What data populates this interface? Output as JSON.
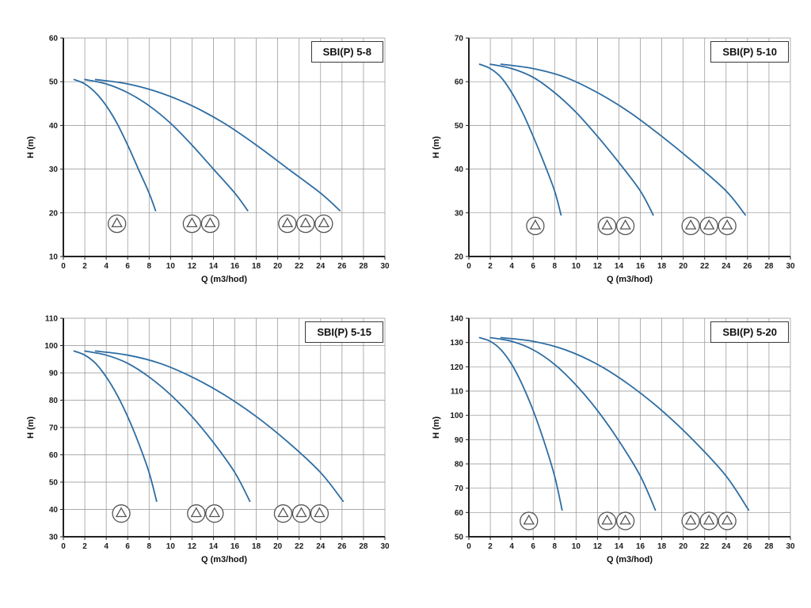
{
  "page": {
    "background": "#ffffff",
    "grid_color": "#8f8f8f",
    "axis_color": "#222222",
    "pump_icon_color": "#555555"
  },
  "chart_data": [
    {
      "type": "line",
      "title": "SBI(P) 5-8",
      "xlabel": "Q (m3/hod)",
      "ylabel": "H (m)",
      "xlim": [
        0,
        30
      ],
      "ylim": [
        10,
        60
      ],
      "xticks": [
        0,
        2,
        4,
        6,
        8,
        10,
        12,
        14,
        16,
        18,
        20,
        22,
        24,
        26,
        28,
        30
      ],
      "yticks": [
        10,
        20,
        30,
        40,
        50,
        60
      ],
      "grid": true,
      "legend": false,
      "curve_color": "#2d6da3",
      "series": [
        {
          "name": "1-pump",
          "points": [
            [
              1,
              50.5
            ],
            [
              2,
              49.5
            ],
            [
              3,
              47.5
            ],
            [
              4,
              44.5
            ],
            [
              5,
              40.5
            ],
            [
              6,
              35.5
            ],
            [
              7,
              30
            ],
            [
              8,
              24.5
            ],
            [
              8.6,
              20.5
            ]
          ]
        },
        {
          "name": "2-pumps",
          "points": [
            [
              2,
              50.5
            ],
            [
              4,
              49.5
            ],
            [
              6,
              47.5
            ],
            [
              8,
              44.5
            ],
            [
              10,
              40.5
            ],
            [
              12,
              35.5
            ],
            [
              14,
              30
            ],
            [
              16,
              24.5
            ],
            [
              17.2,
              20.5
            ]
          ]
        },
        {
          "name": "3-pumps",
          "points": [
            [
              3,
              50.5
            ],
            [
              6,
              49.5
            ],
            [
              9,
              47.5
            ],
            [
              12,
              44.5
            ],
            [
              15,
              40.5
            ],
            [
              18,
              35.5
            ],
            [
              21,
              30
            ],
            [
              24,
              24.5
            ],
            [
              25.8,
              20.5
            ]
          ]
        }
      ],
      "pump_icons": {
        "y": 17.5,
        "groups": [
          [
            5.0
          ],
          [
            12.0,
            13.7
          ],
          [
            20.9,
            22.6,
            24.3
          ]
        ]
      }
    },
    {
      "type": "line",
      "title": "SBI(P) 5-10",
      "xlabel": "Q (m3/hod)",
      "ylabel": "H (m)",
      "xlim": [
        0,
        30
      ],
      "ylim": [
        20,
        70
      ],
      "xticks": [
        0,
        2,
        4,
        6,
        8,
        10,
        12,
        14,
        16,
        18,
        20,
        22,
        24,
        26,
        28,
        30
      ],
      "yticks": [
        20,
        30,
        40,
        50,
        60,
        70
      ],
      "grid": true,
      "legend": false,
      "curve_color": "#2d6da3",
      "series": [
        {
          "name": "1-pump",
          "points": [
            [
              1,
              64
            ],
            [
              2,
              63
            ],
            [
              3,
              61
            ],
            [
              4,
              57.5
            ],
            [
              5,
              53
            ],
            [
              6,
              47.5
            ],
            [
              7,
              41.5
            ],
            [
              8,
              35
            ],
            [
              8.6,
              29.5
            ]
          ]
        },
        {
          "name": "2-pumps",
          "points": [
            [
              2,
              64
            ],
            [
              4,
              63
            ],
            [
              6,
              61
            ],
            [
              8,
              57.5
            ],
            [
              10,
              53
            ],
            [
              12,
              47.5
            ],
            [
              14,
              41.5
            ],
            [
              16,
              35
            ],
            [
              17.2,
              29.5
            ]
          ]
        },
        {
          "name": "3-pumps",
          "points": [
            [
              3,
              64
            ],
            [
              6,
              63
            ],
            [
              9,
              61
            ],
            [
              12,
              57.5
            ],
            [
              15,
              53
            ],
            [
              18,
              47.5
            ],
            [
              21,
              41.5
            ],
            [
              24,
              35
            ],
            [
              25.8,
              29.5
            ]
          ]
        }
      ],
      "pump_icons": {
        "y": 27,
        "groups": [
          [
            6.2
          ],
          [
            12.9,
            14.6
          ],
          [
            20.7,
            22.4,
            24.1
          ]
        ]
      }
    },
    {
      "type": "line",
      "title": "SBI(P) 5-15",
      "xlabel": "Q (m3/hod)",
      "ylabel": "H (m)",
      "xlim": [
        0,
        30
      ],
      "ylim": [
        30,
        110
      ],
      "xticks": [
        0,
        2,
        4,
        6,
        8,
        10,
        12,
        14,
        16,
        18,
        20,
        22,
        24,
        26,
        28,
        30
      ],
      "yticks": [
        30,
        40,
        50,
        60,
        70,
        80,
        90,
        100,
        110
      ],
      "grid": true,
      "legend": false,
      "curve_color": "#2d6da3",
      "series": [
        {
          "name": "1-pump",
          "points": [
            [
              1,
              98
            ],
            [
              2,
              96.5
            ],
            [
              3,
              93.5
            ],
            [
              4,
              88.5
            ],
            [
              5,
              82
            ],
            [
              6,
              74
            ],
            [
              7,
              64.5
            ],
            [
              8,
              53.5
            ],
            [
              8.7,
              43
            ]
          ]
        },
        {
          "name": "2-pumps",
          "points": [
            [
              2,
              98
            ],
            [
              4,
              96.5
            ],
            [
              6,
              93.5
            ],
            [
              8,
              88.5
            ],
            [
              10,
              82
            ],
            [
              12,
              74
            ],
            [
              14,
              64.5
            ],
            [
              16,
              53.5
            ],
            [
              17.4,
              43
            ]
          ]
        },
        {
          "name": "3-pumps",
          "points": [
            [
              3,
              98
            ],
            [
              6,
              96.5
            ],
            [
              9,
              93.5
            ],
            [
              12,
              88.5
            ],
            [
              15,
              82
            ],
            [
              18,
              74
            ],
            [
              21,
              64.5
            ],
            [
              24,
              53.5
            ],
            [
              26.1,
              43
            ]
          ]
        }
      ],
      "pump_icons": {
        "y": 38.5,
        "groups": [
          [
            5.4
          ],
          [
            12.4,
            14.1
          ],
          [
            20.5,
            22.2,
            23.9
          ]
        ]
      }
    },
    {
      "type": "line",
      "title": "SBI(P) 5-20",
      "xlabel": "Q (m3/hod)",
      "ylabel": "H (m)",
      "xlim": [
        0,
        30
      ],
      "ylim": [
        50,
        140
      ],
      "xticks": [
        0,
        2,
        4,
        6,
        8,
        10,
        12,
        14,
        16,
        18,
        20,
        22,
        24,
        26,
        28,
        30
      ],
      "yticks": [
        50,
        60,
        70,
        80,
        90,
        100,
        110,
        120,
        130,
        140
      ],
      "grid": true,
      "legend": false,
      "curve_color": "#2d6da3",
      "series": [
        {
          "name": "1-pump",
          "points": [
            [
              1,
              132
            ],
            [
              2,
              130.5
            ],
            [
              3,
              127
            ],
            [
              4,
              121
            ],
            [
              5,
              112.5
            ],
            [
              6,
              102
            ],
            [
              7,
              89.5
            ],
            [
              8,
              75
            ],
            [
              8.7,
              61
            ]
          ]
        },
        {
          "name": "2-pumps",
          "points": [
            [
              2,
              132
            ],
            [
              4,
              130.5
            ],
            [
              6,
              127
            ],
            [
              8,
              121
            ],
            [
              10,
              112.5
            ],
            [
              12,
              102
            ],
            [
              14,
              89.5
            ],
            [
              16,
              75
            ],
            [
              17.4,
              61
            ]
          ]
        },
        {
          "name": "3-pumps",
          "points": [
            [
              3,
              132
            ],
            [
              6,
              130.5
            ],
            [
              9,
              127
            ],
            [
              12,
              121
            ],
            [
              15,
              112.5
            ],
            [
              18,
              102
            ],
            [
              21,
              89.5
            ],
            [
              24,
              75
            ],
            [
              26.1,
              61
            ]
          ]
        }
      ],
      "pump_icons": {
        "y": 56.5,
        "groups": [
          [
            5.6
          ],
          [
            12.9,
            14.6
          ],
          [
            20.7,
            22.4,
            24.1
          ]
        ]
      }
    }
  ]
}
